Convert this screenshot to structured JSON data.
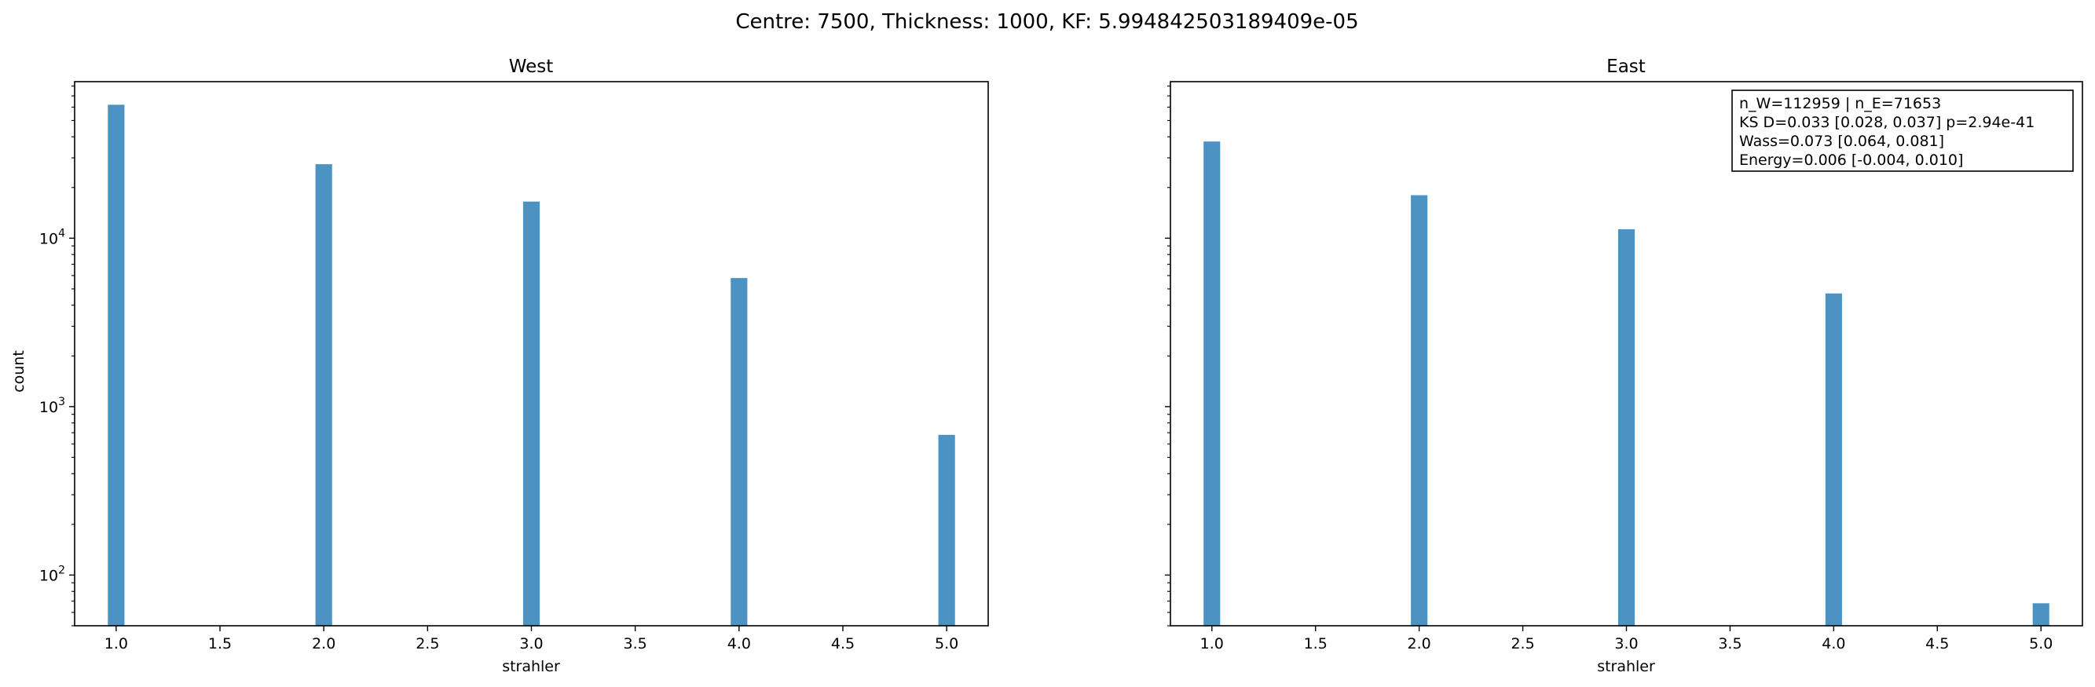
{
  "figure": {
    "suptitle": "Centre: 7500, Thickness: 1000, KF: 5.994842503189409e-05",
    "bar_color": "#4c92c3"
  },
  "chart_data": [
    {
      "type": "bar",
      "title": "West",
      "xlabel": "strahler",
      "ylabel": "count",
      "yscale": "log",
      "xlim": [
        0.8,
        5.2
      ],
      "ylim": [
        50,
        85000
      ],
      "x_ticks": [
        1.0,
        1.5,
        2.0,
        2.5,
        3.0,
        3.5,
        4.0,
        4.5,
        5.0
      ],
      "x_tick_labels": [
        "1.0",
        "1.5",
        "2.0",
        "2.5",
        "3.0",
        "3.5",
        "4.0",
        "4.5",
        "5.0"
      ],
      "y_ticks": [
        100,
        1000,
        10000
      ],
      "y_tick_labels": [
        {
          "base": "10",
          "exp": "2"
        },
        {
          "base": "10",
          "exp": "3"
        },
        {
          "base": "10",
          "exp": "4"
        }
      ],
      "bar_width": 0.08,
      "categories": [
        1,
        2,
        3,
        4,
        5
      ],
      "values": [
        62000,
        27500,
        16500,
        5800,
        680
      ]
    },
    {
      "type": "bar",
      "title": "East",
      "xlabel": "strahler",
      "ylabel": "",
      "yscale": "log",
      "xlim": [
        0.8,
        5.2
      ],
      "ylim": [
        50,
        85000
      ],
      "x_ticks": [
        1.0,
        1.5,
        2.0,
        2.5,
        3.0,
        3.5,
        4.0,
        4.5,
        5.0
      ],
      "x_tick_labels": [
        "1.0",
        "1.5",
        "2.0",
        "2.5",
        "3.0",
        "3.5",
        "4.0",
        "4.5",
        "5.0"
      ],
      "y_ticks": [
        100,
        1000,
        10000
      ],
      "y_tick_labels": [],
      "bar_width": 0.08,
      "categories": [
        1,
        2,
        3,
        4,
        5
      ],
      "values": [
        37500,
        18000,
        11300,
        4700,
        68
      ],
      "annotation": [
        "n_W=112959 | n_E=71653",
        "KS D=0.033 [0.028, 0.037]  p=2.94e-41",
        "Wass=0.073 [0.064, 0.081]",
        "Energy=0.006 [-0.004, 0.010]"
      ]
    }
  ]
}
